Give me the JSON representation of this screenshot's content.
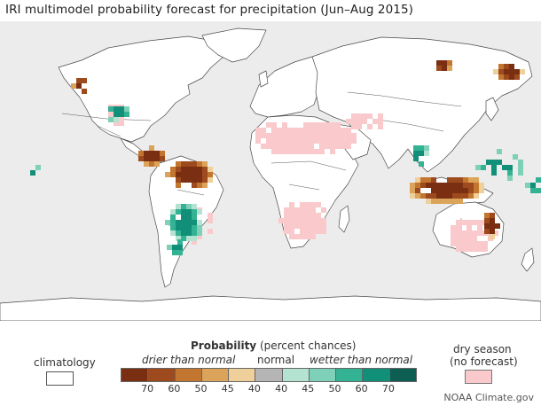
{
  "title": "IRI multimodel probability forecast for precipitation (Jun–Aug 2015)",
  "legend": {
    "climatology_label": "climatology",
    "probability_bold": "Probability",
    "probability_rest": " (percent chances)",
    "drier_label": "drier than normal",
    "normal_label": "normal",
    "wetter_label": "wetter than normal",
    "dry_season_line1": "dry season",
    "dry_season_line2": "(no forecast)",
    "ticks": [
      "70",
      "60",
      "50",
      "45",
      "40",
      "40",
      "45",
      "50",
      "60",
      "70"
    ]
  },
  "credit": "NOAA Climate.gov",
  "colors": {
    "ocean": "#ececec",
    "land": "#ffffff",
    "border": "#333333",
    "drier": [
      "#7a2f12",
      "#9c4a1e",
      "#c3762f",
      "#dba45a",
      "#f0d09a"
    ],
    "normal": "#b5b5b5",
    "wetter": [
      "#b4e3d2",
      "#7fd0b8",
      "#33b294",
      "#128f78",
      "#0c5f52"
    ],
    "dry_season": "#f9c9cc"
  }
}
